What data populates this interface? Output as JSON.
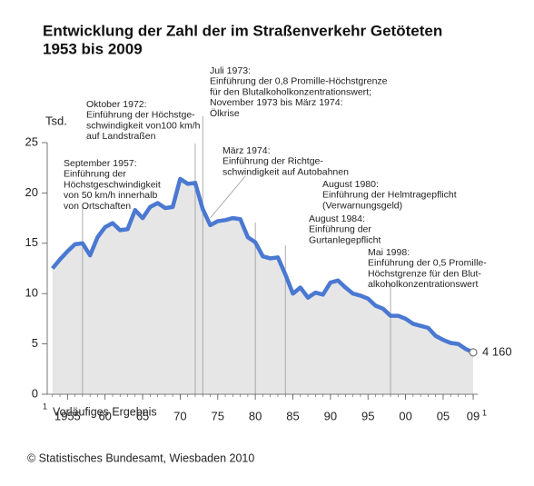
{
  "chart_data": {
    "type": "area",
    "title": [
      "Entwicklung der Zahl der im Straßenverkehr Getöteten",
      "1953 bis 2009"
    ],
    "y_unit": "Tsd.",
    "x": [
      1953,
      1954,
      1955,
      1956,
      1957,
      1958,
      1959,
      1960,
      1961,
      1962,
      1963,
      1964,
      1965,
      1966,
      1967,
      1968,
      1969,
      1970,
      1971,
      1972,
      1973,
      1974,
      1975,
      1976,
      1977,
      1978,
      1979,
      1980,
      1981,
      1982,
      1983,
      1984,
      1985,
      1986,
      1987,
      1988,
      1989,
      1990,
      1991,
      1992,
      1993,
      1994,
      1995,
      1996,
      1997,
      1998,
      1999,
      2000,
      2001,
      2002,
      2003,
      2004,
      2005,
      2006,
      2007,
      2008,
      2009
    ],
    "values": [
      12.5,
      13.4,
      14.2,
      14.9,
      15.0,
      13.8,
      15.6,
      16.6,
      17.0,
      16.3,
      16.4,
      18.3,
      17.5,
      18.6,
      19.0,
      18.5,
      18.6,
      21.4,
      20.9,
      21.0,
      18.4,
      16.8,
      17.2,
      17.3,
      17.5,
      17.4,
      15.6,
      15.1,
      13.7,
      13.5,
      13.6,
      11.9,
      10.0,
      10.6,
      9.6,
      10.1,
      9.9,
      11.1,
      11.3,
      10.6,
      10.0,
      9.8,
      9.5,
      8.8,
      8.5,
      7.8,
      7.8,
      7.5,
      7.0,
      6.8,
      6.6,
      5.8,
      5.4,
      5.1,
      5.0,
      4.5,
      4.16
    ],
    "value_labels": [
      null,
      null,
      null,
      null,
      null,
      null,
      null,
      null,
      null,
      null,
      null,
      null,
      null,
      null,
      null,
      null,
      null,
      null,
      null,
      null,
      null,
      null,
      null,
      null,
      null,
      null,
      null,
      null,
      null,
      null,
      null,
      null,
      null,
      null,
      null,
      null,
      null,
      null,
      null,
      null,
      null,
      null,
      null,
      null,
      null,
      null,
      null,
      null,
      null,
      null,
      null,
      null,
      null,
      null,
      null,
      null,
      "4 160"
    ],
    "color": "#4a78d2",
    "area_color": "#e6e6e6",
    "xlim": [
      1952.3,
      2009.6
    ],
    "ylim": [
      0,
      25
    ],
    "yticks": [
      0,
      5,
      10,
      15,
      20,
      25
    ],
    "xticks": [
      1955,
      {
        "value": 1960,
        "label": "60"
      },
      {
        "value": 1965,
        "label": "65"
      },
      {
        "value": 1970,
        "label": "70"
      },
      {
        "value": 1975,
        "label": "75"
      },
      {
        "value": 1980,
        "label": "80"
      },
      {
        "value": 1985,
        "label": "85"
      },
      {
        "value": 1990,
        "label": "90"
      },
      {
        "value": 1995,
        "label": "95"
      },
      {
        "value": 2000,
        "label": "00"
      },
      {
        "value": 2005,
        "label": "05"
      },
      {
        "value": 2009,
        "label": "09"
      }
    ],
    "grid": false,
    "annotations": [
      {
        "x": 1957,
        "lines": [
          "September 1957:",
          "Einführung der",
          "Höchstgeschwindigkeit",
          "von 50 km/h innerhalb",
          "von Ortschaften"
        ]
      },
      {
        "x": 1972,
        "lines": [
          "Oktober 1972:",
          "Einführung der Höchstge-",
          "schwindigkeit von100 km/h",
          "auf Landstraßen"
        ]
      },
      {
        "x": 1973,
        "lines": [
          "Juli 1973:",
          "Einführung der 0,8 Promille-Höchstgrenze",
          "für den Blutalkoholkonzentrationswert;",
          "November 1973 bis März 1974:",
          "Ölkrise"
        ]
      },
      {
        "x": 1974,
        "lines": [
          "März 1974:",
          "Einführung der Richtge-",
          "schwindigkeit auf Autobahnen"
        ]
      },
      {
        "x": 1980,
        "lines": [
          "August 1980:",
          "Einführung der Helmtragepflicht",
          "(Verwarnungsgeld)"
        ]
      },
      {
        "x": 1984,
        "lines": [
          "August 1984:",
          "Einführung der",
          "Gurtanlegepflicht"
        ]
      },
      {
        "x": 1998,
        "lines": [
          "Mai 1998:",
          "Einführung der 0,5 Promille-",
          "Höchstgrenze für den Blut-",
          "alkoholkonzentrationswert"
        ]
      }
    ],
    "footnote": {
      "marker": "1",
      "text": "Vorläufiges Ergebnis"
    },
    "source": "© Statistisches Bundesamt, Wiesbaden 2010"
  }
}
